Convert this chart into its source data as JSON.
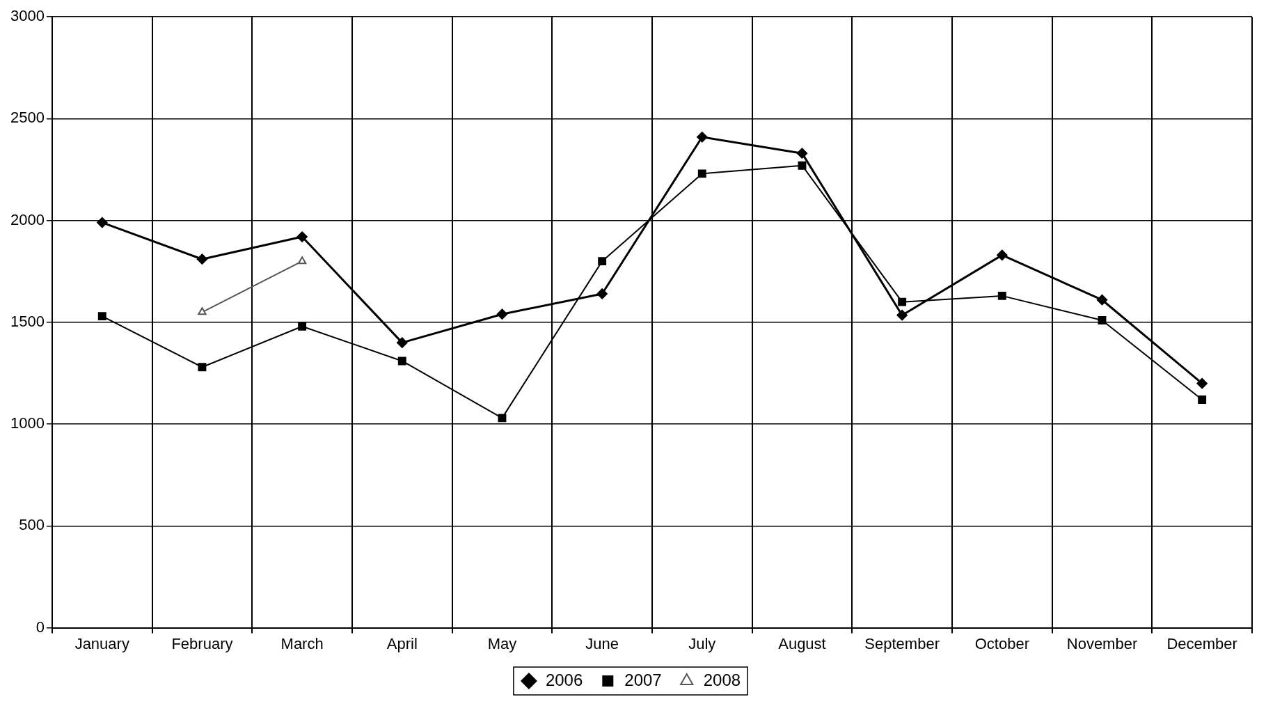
{
  "chart_data": {
    "type": "line",
    "categories": [
      "January",
      "February",
      "March",
      "April",
      "May",
      "June",
      "July",
      "August",
      "September",
      "October",
      "November",
      "December"
    ],
    "series": [
      {
        "name": "2006",
        "color": "#000000",
        "marker": "diamond",
        "values": [
          1990,
          1810,
          1920,
          1400,
          1540,
          1640,
          2410,
          2330,
          1535,
          1830,
          1610,
          1200
        ]
      },
      {
        "name": "2007",
        "color": "#000000",
        "marker": "square",
        "values": [
          1530,
          1280,
          1480,
          1310,
          1030,
          1800,
          2230,
          2270,
          1600,
          1630,
          1510,
          1120
        ]
      },
      {
        "name": "2008",
        "color": "#555555",
        "marker": "triangle",
        "values": [
          null,
          1550,
          1800,
          null,
          null,
          null,
          null,
          null,
          null,
          null,
          null,
          null
        ]
      }
    ],
    "ylim": [
      0,
      3000
    ],
    "yticks": [
      0,
      500,
      1000,
      1500,
      2000,
      2500,
      3000
    ],
    "grid": true,
    "legend": "bottom",
    "line_style": "solid"
  }
}
